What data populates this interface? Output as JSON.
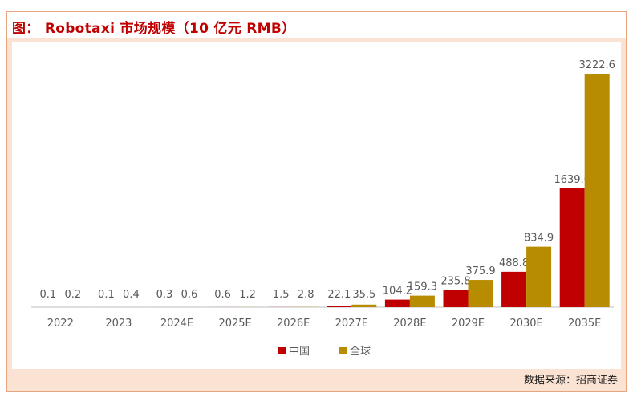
{
  "header": {
    "title": "图： Robotaxi 市场规模（10 亿元 RMB）"
  },
  "footer": {
    "source": "数据来源：招商证券"
  },
  "colors": {
    "china": "#c00000",
    "global": "#b78c00",
    "axis": "#bfbfbf",
    "label": "#595959",
    "border": "#e9a57e",
    "panel_bg": "#fbe3d3",
    "title": "#c00000"
  },
  "chart_data": {
    "type": "bar",
    "title": "",
    "xlabel": "",
    "ylabel": "",
    "categories": [
      "2022",
      "2023",
      "2024E",
      "2025E",
      "2026E",
      "2027E",
      "2028E",
      "2029E",
      "2030E",
      "2035E"
    ],
    "series": [
      {
        "name": "中国",
        "values": [
          0.1,
          0.1,
          0.3,
          0.6,
          1.5,
          22.1,
          104.2,
          235.8,
          488.8,
          1639.6
        ]
      },
      {
        "name": "全球",
        "values": [
          0.2,
          0.4,
          0.6,
          1.2,
          2.8,
          35.5,
          159.3,
          375.9,
          834.9,
          3222.6
        ]
      }
    ],
    "ylim": [
      0,
      3400
    ],
    "grid": false,
    "legend_position": "bottom-center",
    "data_labels": true
  }
}
